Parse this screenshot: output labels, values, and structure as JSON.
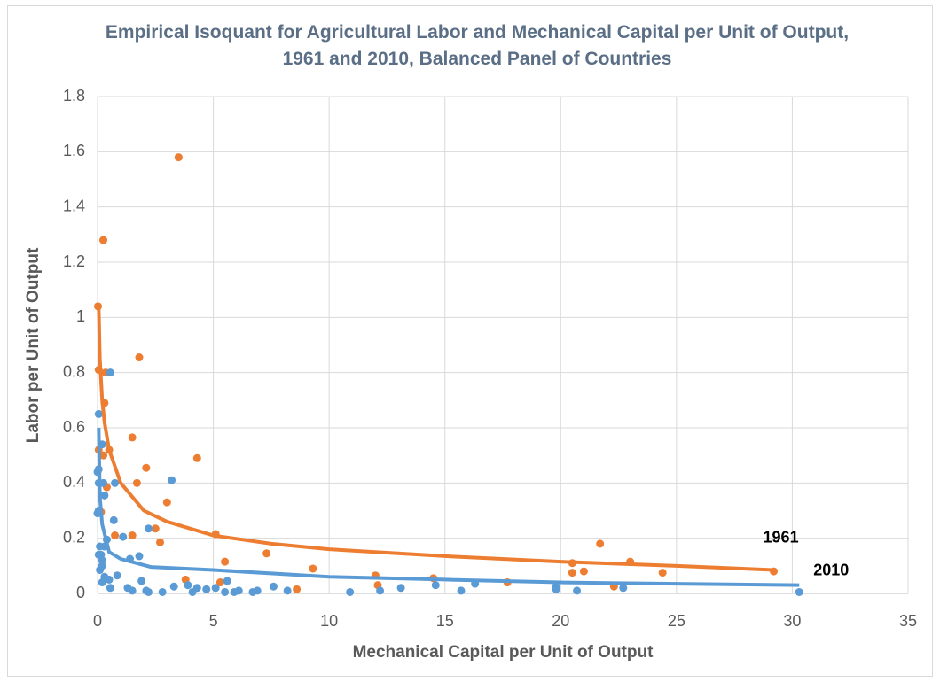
{
  "chart_data": {
    "type": "scatter",
    "title": "Empirical Isoquant for Agricultural Labor and Mechanical Capital  per Unit of Output, 1961 and 2010, Balanced Panel of Countries",
    "x_label": "Mechanical Capital per Unit of Output",
    "y_label": "Labor per Unit of Output",
    "xlim": [
      0,
      35
    ],
    "xticks": [
      0,
      5,
      10,
      15,
      20,
      25,
      30,
      35
    ],
    "ylim": [
      0,
      1.8
    ],
    "yticks": [
      0,
      0.2,
      0.4,
      0.6,
      0.8,
      1,
      1.2,
      1.4,
      1.6,
      1.8
    ],
    "grid": true,
    "series": [
      {
        "name": "1961",
        "color": "#ED7D31",
        "x": [
          0.02,
          0.25,
          3.5,
          0.05,
          0.35,
          1.8,
          0.3,
          0.05,
          0.25,
          0.5,
          1.5,
          4.3,
          2.1,
          1.7,
          0.4,
          3.0,
          0.15,
          2.5,
          1.5,
          0.75,
          5.1,
          2.7,
          5.5,
          7.3,
          9.3,
          3.8,
          5.3,
          8.6,
          12,
          12.1,
          14.5,
          17.7,
          20.5,
          20.5,
          21,
          21.7,
          23,
          22.3,
          24.4,
          29.2
        ],
        "values": [
          1.04,
          1.28,
          1.58,
          0.81,
          0.8,
          0.855,
          0.69,
          0.52,
          0.5,
          0.52,
          0.565,
          0.49,
          0.455,
          0.4,
          0.385,
          0.33,
          0.295,
          0.235,
          0.21,
          0.21,
          0.215,
          0.185,
          0.115,
          0.145,
          0.09,
          0.05,
          0.04,
          0.015,
          0.065,
          0.03,
          0.055,
          0.04,
          0.11,
          0.075,
          0.08,
          0.18,
          0.115,
          0.025,
          0.075,
          0.08
        ],
        "trendline": {
          "x": [
            0.05,
            0.1,
            0.2,
            0.3,
            0.5,
            1,
            2,
            3,
            5,
            7.5,
            10,
            15,
            20,
            25,
            29.2
          ],
          "values": [
            1.04,
            0.85,
            0.7,
            0.62,
            0.52,
            0.4,
            0.3,
            0.26,
            0.21,
            0.18,
            0.16,
            0.135,
            0.115,
            0.1,
            0.085
          ]
        }
      },
      {
        "name": "2010",
        "color": "#5B9BD5",
        "x": [
          0.05,
          0.55,
          0.0,
          0.05,
          0.2,
          0.05,
          0.25,
          0.75,
          3.2,
          0.3,
          0.05,
          0.0,
          0.7,
          2.2,
          0.4,
          0.1,
          0.3,
          0.15,
          0.05,
          0.2,
          1.1,
          1.4,
          1.8,
          0.2,
          0.1,
          0.3,
          0.5,
          0.85,
          0.2,
          0.55,
          1.3,
          1.5,
          1.9,
          2.1,
          2.2,
          2.8,
          3.3,
          3.9,
          4.1,
          4.3,
          4.7,
          5.1,
          5.5,
          5.6,
          5.9,
          6.1,
          6.7,
          6.9,
          7.6,
          8.2,
          10.9,
          12.2,
          13.1,
          14.6,
          15.7,
          16.3,
          19.8,
          19.8,
          20.7,
          22.7,
          30.3
        ],
        "values": [
          0.65,
          0.8,
          0.44,
          0.45,
          0.54,
          0.4,
          0.4,
          0.4,
          0.41,
          0.355,
          0.3,
          0.29,
          0.265,
          0.235,
          0.195,
          0.17,
          0.17,
          0.14,
          0.14,
          0.12,
          0.205,
          0.125,
          0.135,
          0.1,
          0.085,
          0.06,
          0.05,
          0.065,
          0.04,
          0.02,
          0.02,
          0.01,
          0.045,
          0.01,
          0.005,
          0.005,
          0.025,
          0.03,
          0.005,
          0.02,
          0.015,
          0.02,
          0.005,
          0.045,
          0.005,
          0.01,
          0.005,
          0.01,
          0.025,
          0.01,
          0.005,
          0.01,
          0.02,
          0.03,
          0.01,
          0.035,
          0.025,
          0.015,
          0.01,
          0.02,
          0.005
        ],
        "trendline": {
          "x": [
            0.05,
            0.1,
            0.2,
            0.5,
            1,
            2.3,
            5,
            10,
            15,
            20,
            25,
            30.3
          ],
          "values": [
            0.6,
            0.35,
            0.25,
            0.15,
            0.125,
            0.096,
            0.085,
            0.06,
            0.05,
            0.04,
            0.035,
            0.03
          ]
        }
      }
    ]
  }
}
